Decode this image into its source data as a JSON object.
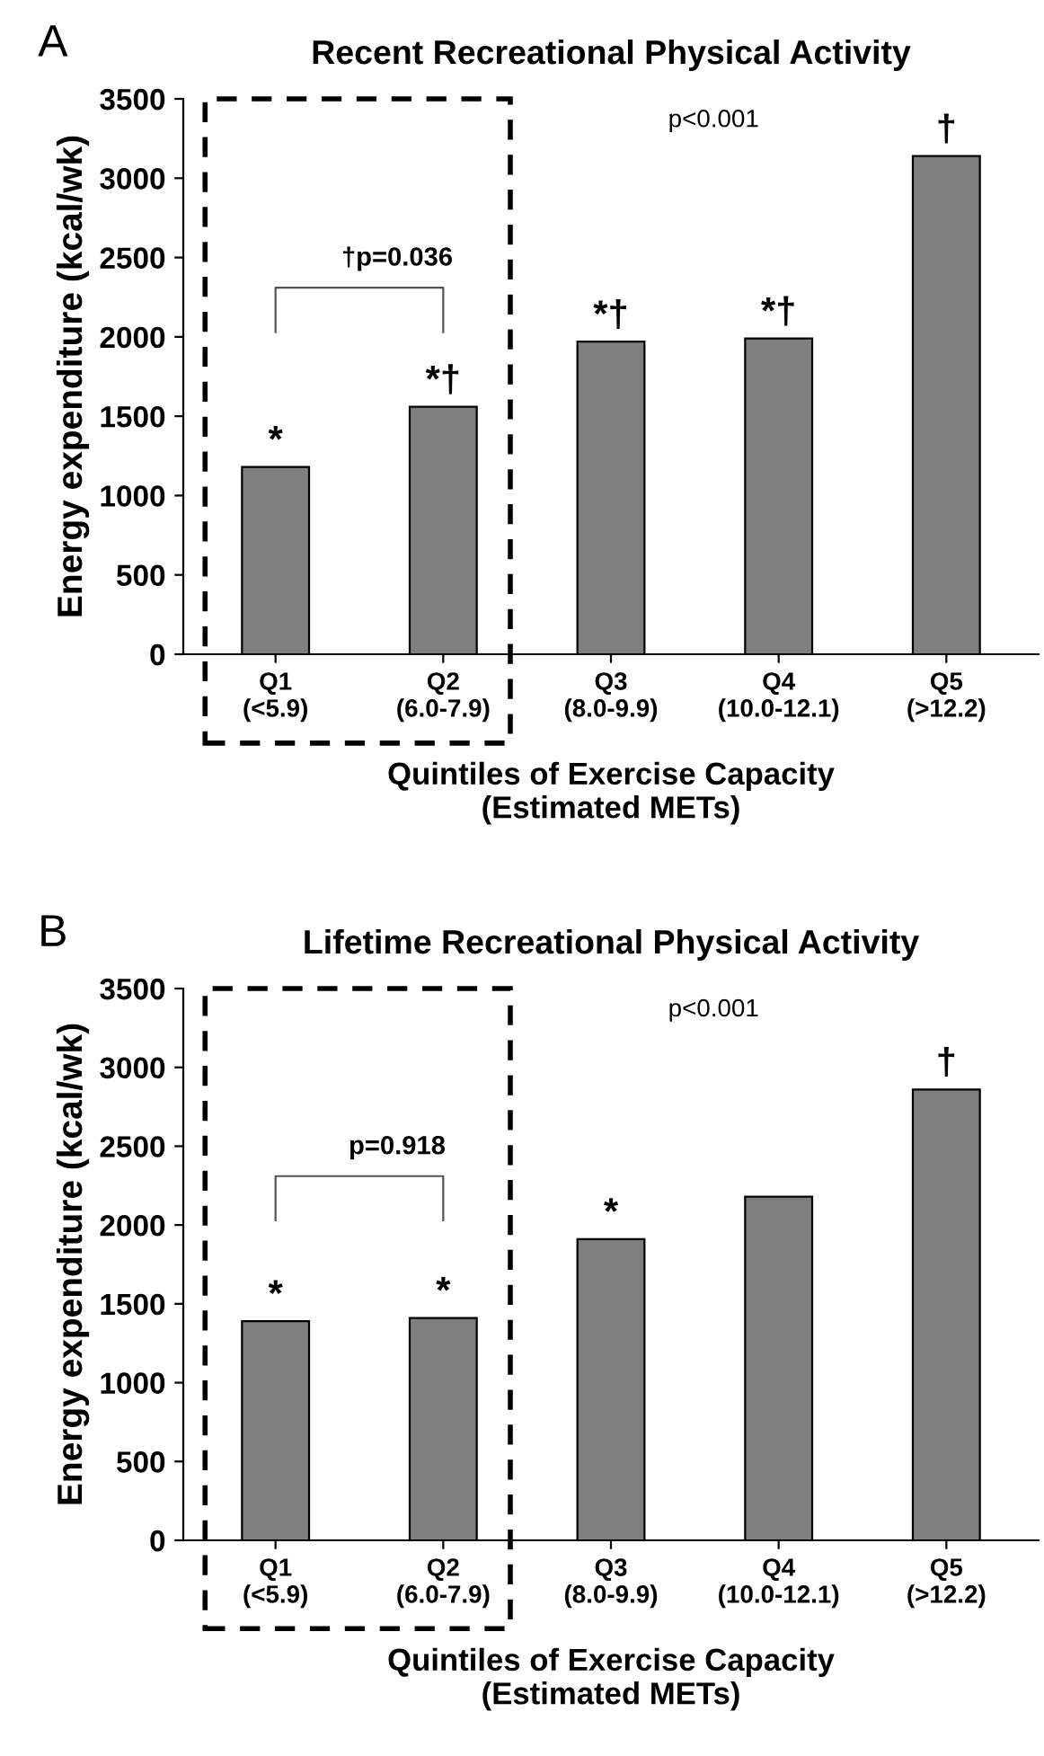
{
  "chart_data": [
    {
      "type": "bar",
      "title": "Recent Recreational Physical Activity",
      "xlabel": "Quintiles of Exercise Capacity\n(Estimated METs)",
      "ylabel": "Energy expenditure (kcal/wk)",
      "categories": [
        "Q1\n(<5.9)",
        "Q2\n(6.0-7.9)",
        "Q3\n(8.0-9.9)",
        "Q4\n(10.0-12.1)",
        "Q5\n(>12.2)"
      ],
      "series": [
        {
          "color": "#7f7f7f",
          "values": [
            1180,
            1560,
            1970,
            1990,
            3140
          ]
        }
      ],
      "ylim": [
        0,
        3500
      ],
      "yticks": [
        0,
        500,
        1000,
        1500,
        2000,
        2500,
        3000,
        3500
      ],
      "grid": false,
      "legend": false,
      "annotations": [
        "A",
        "p<0.001",
        "†p=0.036",
        {
          "text": "*",
          "x": "Q1\n(<5.9)",
          "y": 1180
        },
        {
          "text": "*†",
          "x": "Q2\n(6.0-7.9)",
          "y": 1560
        },
        {
          "text": "*†",
          "x": "Q3\n(8.0-9.9)",
          "y": 1970
        },
        {
          "text": "*†",
          "x": "Q4\n(10.0-12.1)",
          "y": 1990
        },
        {
          "text": "†",
          "x": "Q5\n(>12.2)",
          "y": 3140
        }
      ]
    },
    {
      "type": "bar",
      "title": "Lifetime Recreational Physical Activity",
      "xlabel": "Quintiles of Exercise Capacity\n(Estimated METs)",
      "ylabel": "Energy expenditure (kcal/wk)",
      "categories": [
        "Q1\n(<5.9)",
        "Q2\n(6.0-7.9)",
        "Q3\n(8.0-9.9)",
        "Q4\n(10.0-12.1)",
        "Q5\n(>12.2)"
      ],
      "series": [
        {
          "color": "#7f7f7f",
          "values": [
            1390,
            1410,
            1910,
            2180,
            2860
          ]
        }
      ],
      "ylim": [
        0,
        3500
      ],
      "yticks": [
        0,
        500,
        1000,
        1500,
        2000,
        2500,
        3000,
        3500
      ],
      "grid": false,
      "legend": false,
      "annotations": [
        "B",
        "p<0.001",
        "p=0.918",
        {
          "text": "*",
          "x": "Q1\n(<5.9)",
          "y": 1390
        },
        {
          "text": "*",
          "x": "Q2\n(6.0-7.9)",
          "y": 1410
        },
        {
          "text": "*",
          "x": "Q3\n(8.0-9.9)",
          "y": 1910
        },
        {
          "text": "†",
          "x": "Q5\n(>12.2)",
          "y": 2860
        }
      ]
    }
  ]
}
